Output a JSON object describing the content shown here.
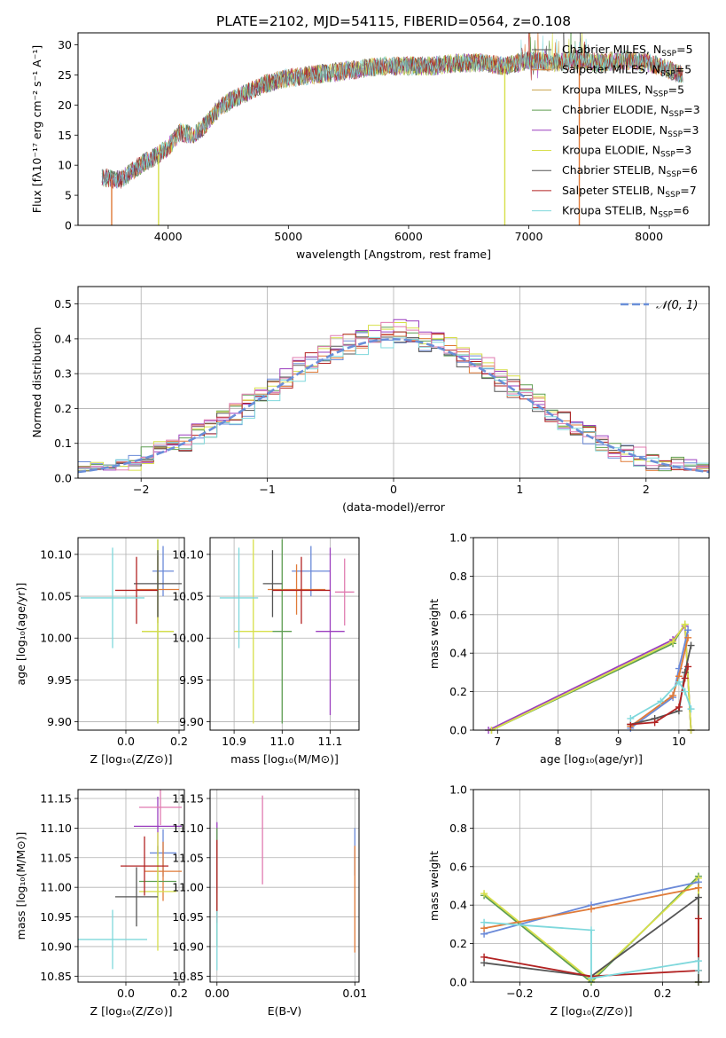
{
  "figure_title": "PLATE=2102, MJD=54115, FIBERID=0564, z=0.108",
  "colors": {
    "chabrier_miles": "#6a89d8",
    "salpeter_miles": "#e07b39",
    "kroupa_miles": "#c8a24a",
    "chabrier_elodie": "#5f9e52",
    "salpeter_elodie": "#9b3fbf",
    "kroupa_elodie": "#d7df4a",
    "chabrier_stelib": "#555555",
    "salpeter_stelib": "#b22222",
    "kroupa_stelib": "#7fd8dc",
    "pink": "#e07bb0",
    "gauss": "#6a8fd8"
  },
  "chart_data": [
    {
      "type": "line",
      "id": "spectrum",
      "title": "PLATE=2102, MJD=54115, FIBERID=0564, z=0.108",
      "xlabel": "wavelength [Angstrom, rest frame]",
      "ylabel": "Flux [fλ10⁻¹⁷ erg cm⁻² s⁻¹ A⁻¹]",
      "xlim": [
        3250,
        8500
      ],
      "ylim": [
        0,
        32
      ],
      "xticks": [
        4000,
        5000,
        6000,
        7000,
        8000
      ],
      "yticks": [
        0,
        5,
        10,
        15,
        20,
        25,
        30
      ],
      "grid": false,
      "legend_position": "top-right",
      "series": [
        {
          "name": "Chabrier MILES, N_SSP=5",
          "color_key": "chabrier_stelib"
        },
        {
          "name": "Salpeter MILES, N_SSP=5",
          "color_key": "salpeter_miles"
        },
        {
          "name": "Kroupa MILES, N_SSP=5",
          "color_key": "kroupa_miles"
        },
        {
          "name": "Chabrier ELODIE, N_SSP=3",
          "color_key": "chabrier_elodie"
        },
        {
          "name": "Salpeter ELODIE, N_SSP=3",
          "color_key": "salpeter_elodie"
        },
        {
          "name": "Kroupa ELODIE, N_SSP=3",
          "color_key": "kroupa_elodie"
        },
        {
          "name": "Chabrier STELIB, N_SSP=6",
          "color_key": "chabrier_stelib"
        },
        {
          "name": "Salpeter STELIB, N_SSP=7",
          "color_key": "salpeter_stelib"
        },
        {
          "name": "Kroupa STELIB, N_SSP=6",
          "color_key": "kroupa_stelib"
        }
      ],
      "continuum": [
        [
          3450,
          8
        ],
        [
          3600,
          7.5
        ],
        [
          3700,
          9
        ],
        [
          3800,
          10.5
        ],
        [
          3900,
          11.5
        ],
        [
          4000,
          13
        ],
        [
          4100,
          15.5
        ],
        [
          4200,
          15
        ],
        [
          4300,
          16.5
        ],
        [
          4400,
          19
        ],
        [
          4500,
          20.5
        ],
        [
          4600,
          21.5
        ],
        [
          4800,
          23.5
        ],
        [
          5000,
          24.5
        ],
        [
          5200,
          25
        ],
        [
          5400,
          25.5
        ],
        [
          5600,
          26
        ],
        [
          5800,
          26.5
        ],
        [
          6000,
          26.5
        ],
        [
          6200,
          26.5
        ],
        [
          6400,
          27
        ],
        [
          6600,
          27
        ],
        [
          6800,
          26.5
        ],
        [
          7000,
          27.5
        ],
        [
          7200,
          27
        ],
        [
          7400,
          27.5
        ],
        [
          7600,
          27
        ],
        [
          7800,
          27.5
        ],
        [
          8000,
          27
        ],
        [
          8280,
          25
        ]
      ],
      "drops": [
        3530,
        3920,
        6800,
        7420
      ]
    },
    {
      "type": "bar",
      "id": "residuals",
      "xlabel": "(data-model)/error",
      "ylabel": "Normed distribution",
      "xlim": [
        -2.5,
        2.5
      ],
      "ylim": [
        0,
        0.55
      ],
      "xticks": [
        -2,
        -1,
        0,
        1,
        2
      ],
      "yticks": [
        0.0,
        0.1,
        0.2,
        0.3,
        0.4,
        0.5
      ],
      "grid": true,
      "legend_position": "top-right",
      "legend": [
        "𝒩(0, 1)"
      ],
      "bin_width": 0.1,
      "series": [
        {
          "color_key": "chabrier_miles",
          "amp": 0.4,
          "seed": 1
        },
        {
          "color_key": "salpeter_miles",
          "amp": 0.41,
          "seed": 2
        },
        {
          "color_key": "chabrier_elodie",
          "amp": 0.42,
          "seed": 3
        },
        {
          "color_key": "salpeter_elodie",
          "amp": 0.43,
          "seed": 4
        },
        {
          "color_key": "kroupa_elodie",
          "amp": 0.42,
          "seed": 5
        },
        {
          "color_key": "chabrier_stelib",
          "amp": 0.4,
          "seed": 6
        },
        {
          "color_key": "salpeter_stelib",
          "amp": 0.41,
          "seed": 7
        },
        {
          "color_key": "kroupa_stelib",
          "amp": 0.39,
          "seed": 8
        },
        {
          "color_key": "pink",
          "amp": 0.42,
          "seed": 9
        }
      ]
    },
    {
      "type": "scatter",
      "id": "age_vs_z",
      "xlabel": "Z [log₁₀(Z/Z⊙)]",
      "ylabel": "age  [log₁₀(age/yr)]",
      "xlim": [
        -0.18,
        0.22
      ],
      "ylim": [
        9.89,
        10.12
      ],
      "xticks": [
        0.0,
        0.2
      ],
      "yticks": [
        9.9,
        9.95,
        10.0,
        10.05,
        10.1
      ],
      "grid": true,
      "points": [
        {
          "x": 0.14,
          "y": 10.08,
          "xerr": 0.04,
          "yerr": 0.03,
          "color_key": "chabrier_miles"
        },
        {
          "x": 0.12,
          "y": 10.058,
          "xerr": 0.08,
          "yerr": 0.04,
          "color_key": "salpeter_miles"
        },
        {
          "x": 0.12,
          "y": 10.008,
          "xerr": 0.06,
          "yerr": 0.11,
          "color_key": "chabrier_elodie"
        },
        {
          "x": 0.12,
          "y": 10.008,
          "xerr": 0.06,
          "yerr": 0.11,
          "color_key": "kroupa_elodie"
        },
        {
          "x": 0.12,
          "y": 10.065,
          "xerr": 0.09,
          "yerr": 0.04,
          "color_key": "chabrier_stelib"
        },
        {
          "x": 0.04,
          "y": 10.057,
          "xerr": 0.08,
          "yerr": 0.04,
          "color_key": "salpeter_stelib"
        },
        {
          "x": -0.05,
          "y": 10.048,
          "xerr": 0.12,
          "yerr": 0.06,
          "color_key": "kroupa_stelib"
        }
      ]
    },
    {
      "type": "scatter",
      "id": "age_vs_mass",
      "xlabel": "mass [log₁₀(M/M⊙)]",
      "xlim": [
        10.85,
        11.16
      ],
      "ylim": [
        9.89,
        10.12
      ],
      "xticks": [
        10.9,
        11.0,
        11.1
      ],
      "yticks": [
        9.9,
        9.95,
        10.0,
        10.05,
        10.1
      ],
      "grid": true,
      "points": [
        {
          "x": 11.06,
          "y": 10.08,
          "xerr": 0.04,
          "yerr": 0.03,
          "color_key": "chabrier_miles"
        },
        {
          "x": 11.03,
          "y": 10.058,
          "xerr": 0.06,
          "yerr": 0.03,
          "color_key": "salpeter_miles"
        },
        {
          "x": 11.0,
          "y": 10.008,
          "xerr": 0.02,
          "yerr": 0.11,
          "color_key": "chabrier_elodie"
        },
        {
          "x": 11.1,
          "y": 10.008,
          "xerr": 0.03,
          "yerr": 0.1,
          "color_key": "salpeter_elodie"
        },
        {
          "x": 10.94,
          "y": 10.008,
          "xerr": 0.04,
          "yerr": 0.11,
          "color_key": "kroupa_elodie"
        },
        {
          "x": 10.98,
          "y": 10.065,
          "xerr": 0.02,
          "yerr": 0.04,
          "color_key": "chabrier_stelib"
        },
        {
          "x": 11.04,
          "y": 10.057,
          "xerr": 0.06,
          "yerr": 0.04,
          "color_key": "salpeter_stelib"
        },
        {
          "x": 10.91,
          "y": 10.048,
          "xerr": 0.04,
          "yerr": 0.06,
          "color_key": "kroupa_stelib"
        },
        {
          "x": 11.13,
          "y": 10.055,
          "xerr": 0.02,
          "yerr": 0.04,
          "color_key": "pink"
        }
      ]
    },
    {
      "type": "line",
      "id": "weight_vs_age",
      "xlabel": "age  [log₁₀(age/yr)]",
      "ylabel": "mass weight",
      "xlim": [
        6.6,
        10.5
      ],
      "ylim": [
        0,
        1.0
      ],
      "xticks": [
        7,
        8,
        9,
        10
      ],
      "yticks": [
        0.0,
        0.2,
        0.4,
        0.6,
        0.8,
        1.0
      ],
      "grid": true,
      "series": [
        {
          "color_key": "chabrier_elodie",
          "x": [
            6.9,
            9.9,
            10.1,
            10.2
          ],
          "y": [
            0.0,
            0.45,
            0.55,
            0.0
          ]
        },
        {
          "color_key": "salpeter_elodie",
          "x": [
            6.85,
            9.9,
            10.1,
            10.2
          ],
          "y": [
            0.0,
            0.47,
            0.54,
            0.0
          ]
        },
        {
          "color_key": "kroupa_elodie",
          "x": [
            6.9,
            9.9,
            10.1,
            10.2
          ],
          "y": [
            0.0,
            0.46,
            0.55,
            0.0
          ]
        },
        {
          "color_key": "chabrier_miles",
          "x": [
            9.2,
            9.9,
            10.0,
            10.15
          ],
          "y": [
            0.01,
            0.17,
            0.32,
            0.52
          ]
        },
        {
          "color_key": "salpeter_miles",
          "x": [
            9.2,
            9.9,
            10.0,
            10.15
          ],
          "y": [
            0.02,
            0.18,
            0.28,
            0.48
          ]
        },
        {
          "color_key": "chabrier_stelib",
          "x": [
            9.2,
            9.6,
            10.0,
            10.1,
            10.2
          ],
          "y": [
            0.03,
            0.06,
            0.1,
            0.3,
            0.44
          ]
        },
        {
          "color_key": "salpeter_stelib",
          "x": [
            9.2,
            9.6,
            10.0,
            10.1,
            10.15
          ],
          "y": [
            0.03,
            0.04,
            0.12,
            0.27,
            0.33
          ]
        },
        {
          "color_key": "kroupa_stelib",
          "x": [
            9.2,
            9.7,
            10.0,
            10.1,
            10.2
          ],
          "y": [
            0.06,
            0.15,
            0.25,
            0.2,
            0.11
          ]
        }
      ]
    },
    {
      "type": "scatter",
      "id": "mass_vs_z",
      "xlabel": "Z [log₁₀(Z/Z⊙)]",
      "ylabel": "mass [log₁₀(M/M⊙)]",
      "xlim": [
        -0.18,
        0.22
      ],
      "ylim": [
        10.84,
        11.165
      ],
      "xticks": [
        0.0,
        0.2
      ],
      "yticks": [
        10.85,
        10.9,
        10.95,
        11.0,
        11.05,
        11.1,
        11.15
      ],
      "grid": true,
      "points": [
        {
          "x": 0.14,
          "y": 11.058,
          "xerr": 0.05,
          "yerr": 0.04,
          "color_key": "chabrier_miles"
        },
        {
          "x": 0.14,
          "y": 11.027,
          "xerr": 0.07,
          "yerr": 0.05,
          "color_key": "salpeter_miles"
        },
        {
          "x": 0.12,
          "y": 11.01,
          "xerr": 0.07,
          "yerr": 0.06,
          "color_key": "chabrier_elodie"
        },
        {
          "x": 0.12,
          "y": 11.103,
          "xerr": 0.09,
          "yerr": 0.05,
          "color_key": "salpeter_elodie"
        },
        {
          "x": 0.12,
          "y": 10.993,
          "xerr": 0.07,
          "yerr": 0.1,
          "color_key": "kroupa_elodie"
        },
        {
          "x": 0.04,
          "y": 10.984,
          "xerr": 0.08,
          "yerr": 0.05,
          "color_key": "chabrier_stelib"
        },
        {
          "x": 0.07,
          "y": 11.036,
          "xerr": 0.09,
          "yerr": 0.05,
          "color_key": "salpeter_stelib"
        },
        {
          "x": -0.05,
          "y": 10.912,
          "xerr": 0.13,
          "yerr": 0.05,
          "color_key": "kroupa_stelib"
        },
        {
          "x": 0.13,
          "y": 11.135,
          "xerr": 0.08,
          "yerr": 0.03,
          "color_key": "pink"
        }
      ]
    },
    {
      "type": "scatter",
      "id": "mass_vs_ebv",
      "xlabel": "E(B-V)",
      "xlim": [
        -0.0005,
        0.0103
      ],
      "ylim": [
        10.84,
        11.165
      ],
      "xticks": [
        0.0,
        0.01
      ],
      "yticks": [
        10.85,
        10.9,
        10.95,
        11.0,
        11.05,
        11.1,
        11.15
      ],
      "grid": true,
      "points": [
        {
          "x": 0.01,
          "y": 11.06,
          "xerr": 0,
          "yerr": 0.04,
          "color_key": "chabrier_miles"
        },
        {
          "x": 0.01,
          "y": 10.98,
          "xerr": 0,
          "yerr": 0.09,
          "color_key": "salpeter_miles"
        },
        {
          "x": 0.0,
          "y": 11.05,
          "xerr": 0,
          "yerr": 0.06,
          "color_key": "salpeter_elodie"
        },
        {
          "x": 0.0,
          "y": 11.0,
          "xerr": 0,
          "yerr": 0.1,
          "color_key": "chabrier_elodie"
        },
        {
          "x": 0.0,
          "y": 11.01,
          "xerr": 0,
          "yerr": 0.07,
          "color_key": "salpeter_stelib"
        },
        {
          "x": 0.0,
          "y": 10.91,
          "xerr": 0,
          "yerr": 0.05,
          "color_key": "kroupa_stelib"
        },
        {
          "x": 0.0033,
          "y": 11.08,
          "xerr": 0,
          "yerr": 0.075,
          "color_key": "pink"
        }
      ]
    },
    {
      "type": "line",
      "id": "weight_vs_z",
      "xlabel": "Z [log₁₀(Z/Z⊙)]",
      "ylabel": "mass weight",
      "xlim": [
        -0.33,
        0.33
      ],
      "ylim": [
        0,
        1.0
      ],
      "xticks": [
        -0.2,
        0.0,
        0.2
      ],
      "yticks": [
        0.0,
        0.2,
        0.4,
        0.6,
        0.8,
        1.0
      ],
      "grid": true,
      "series": [
        {
          "color_key": "chabrier_elodie",
          "x": [
            -0.3,
            0.0,
            0.3,
            0.3
          ],
          "y": [
            0.45,
            0.0,
            0.55,
            0.0
          ]
        },
        {
          "color_key": "kroupa_elodie",
          "x": [
            -0.3,
            0.0,
            0.3,
            0.3
          ],
          "y": [
            0.46,
            0.01,
            0.54,
            0.0
          ]
        },
        {
          "color_key": "chabrier_miles",
          "x": [
            -0.3,
            0.0,
            0.3
          ],
          "y": [
            0.25,
            0.4,
            0.52
          ]
        },
        {
          "color_key": "salpeter_miles",
          "x": [
            -0.3,
            0.0,
            0.3
          ],
          "y": [
            0.28,
            0.38,
            0.49
          ]
        },
        {
          "color_key": "chabrier_stelib",
          "x": [
            -0.3,
            0.0,
            0.3,
            0.3
          ],
          "y": [
            0.1,
            0.03,
            0.44,
            0.0
          ]
        },
        {
          "color_key": "salpeter_stelib",
          "x": [
            -0.3,
            0.0,
            0.3,
            0.3
          ],
          "y": [
            0.13,
            0.03,
            0.06,
            0.33
          ]
        },
        {
          "color_key": "kroupa_stelib",
          "x": [
            -0.3,
            0.0,
            0.0,
            0.3,
            0.3
          ],
          "y": [
            0.31,
            0.27,
            0.02,
            0.11,
            0.06
          ]
        }
      ]
    }
  ]
}
